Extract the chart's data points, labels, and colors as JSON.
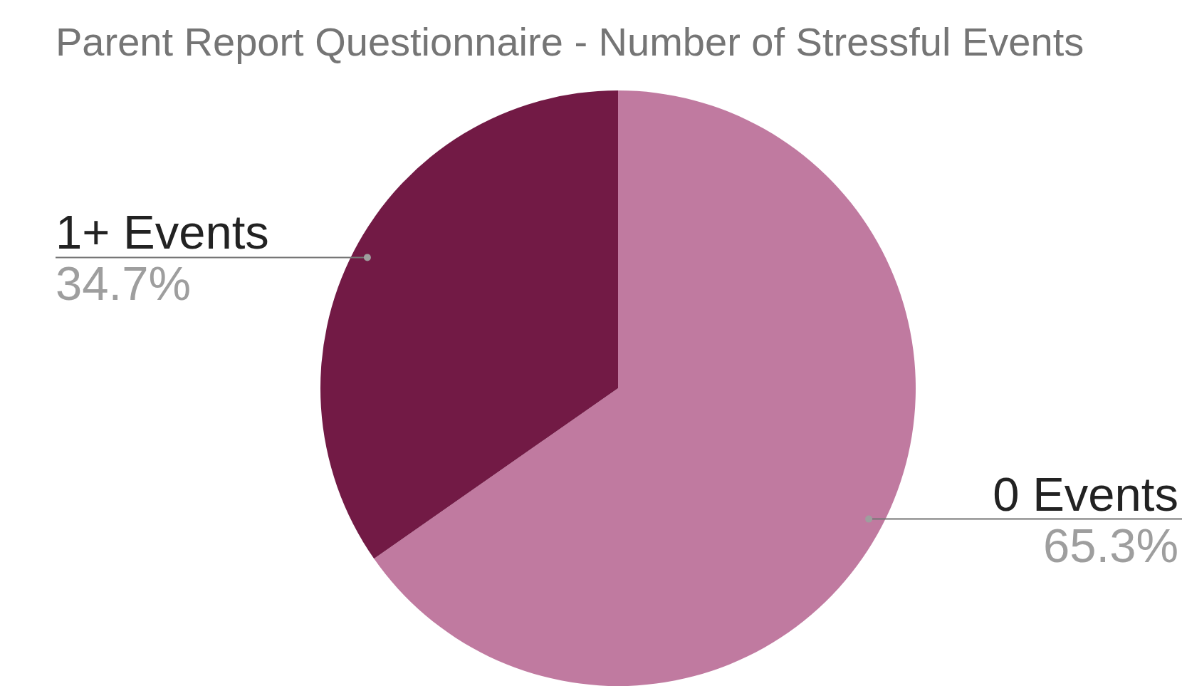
{
  "chart_data": {
    "type": "pie",
    "title": "Parent Report Questionnaire - Number of Stressful Events",
    "categories": [
      "0 Events",
      "1+ Events"
    ],
    "values": [
      65.3,
      34.7
    ],
    "colors": [
      "#c07aa0",
      "#721a45"
    ],
    "value_labels": [
      "65.3%",
      "34.7%"
    ],
    "legend": false
  }
}
